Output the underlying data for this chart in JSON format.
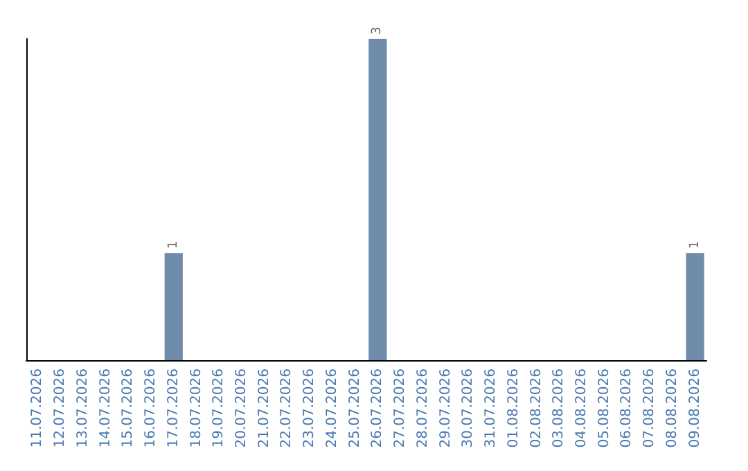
{
  "chart_data": {
    "type": "bar",
    "categories": [
      "11.07.2026",
      "12.07.2026",
      "13.07.2026",
      "14.07.2026",
      "15.07.2026",
      "16.07.2026",
      "17.07.2026",
      "18.07.2026",
      "19.07.2026",
      "20.07.2026",
      "21.07.2026",
      "22.07.2026",
      "23.07.2026",
      "24.07.2026",
      "25.07.2026",
      "26.07.2026",
      "27.07.2026",
      "28.07.2026",
      "29.07.2026",
      "30.07.2026",
      "31.07.2026",
      "01.08.2026",
      "02.08.2026",
      "03.08.2026",
      "04.08.2026",
      "05.08.2026",
      "06.08.2026",
      "07.08.2026",
      "08.08.2026",
      "09.08.2026"
    ],
    "values": [
      0,
      0,
      0,
      0,
      0,
      0,
      1,
      0,
      0,
      0,
      0,
      0,
      0,
      0,
      0,
      3,
      0,
      0,
      0,
      0,
      0,
      0,
      0,
      0,
      0,
      0,
      0,
      0,
      0,
      1
    ],
    "value_labels": [
      null,
      null,
      null,
      null,
      null,
      null,
      "1",
      null,
      null,
      null,
      null,
      null,
      null,
      null,
      null,
      "3",
      null,
      null,
      null,
      null,
      null,
      null,
      null,
      null,
      null,
      null,
      null,
      null,
      null,
      "1"
    ],
    "color": "#6e8caa"
  }
}
